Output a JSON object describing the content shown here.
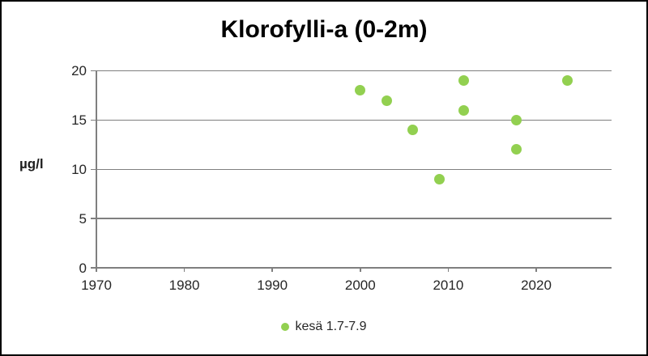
{
  "title": "Klorofylli-a (0-2m)",
  "y_axis_title": "µg/l",
  "legend": {
    "label": "kesä 1.7-7.9"
  },
  "colors": {
    "point": "#92D050",
    "gridline": "#7f7f7f",
    "title_text": "#000000",
    "tick_text": "#262626",
    "background": "#ffffff",
    "frame_border": "#000000"
  },
  "chart_data": {
    "type": "scatter",
    "title": "Klorofylli-a (0-2m)",
    "xlabel": "",
    "ylabel": "µg/l",
    "xlim": [
      1970,
      2028.5
    ],
    "ylim": [
      0,
      20
    ],
    "x_ticks": [
      1970,
      1980,
      1990,
      2000,
      2010,
      2020
    ],
    "y_ticks": [
      0,
      5,
      10,
      15,
      20
    ],
    "grid": "horizontal",
    "legend_position": "bottom",
    "series": [
      {
        "name": "kesä 1.7-7.9",
        "color": "#92D050",
        "points": [
          {
            "x": 2000.0,
            "y": 18
          },
          {
            "x": 2003.0,
            "y": 17
          },
          {
            "x": 2006.0,
            "y": 14
          },
          {
            "x": 2009.0,
            "y": 9
          },
          {
            "x": 2011.8,
            "y": 19
          },
          {
            "x": 2011.8,
            "y": 16
          },
          {
            "x": 2017.7,
            "y": 15
          },
          {
            "x": 2017.7,
            "y": 12
          },
          {
            "x": 2023.5,
            "y": 19
          }
        ]
      }
    ]
  }
}
